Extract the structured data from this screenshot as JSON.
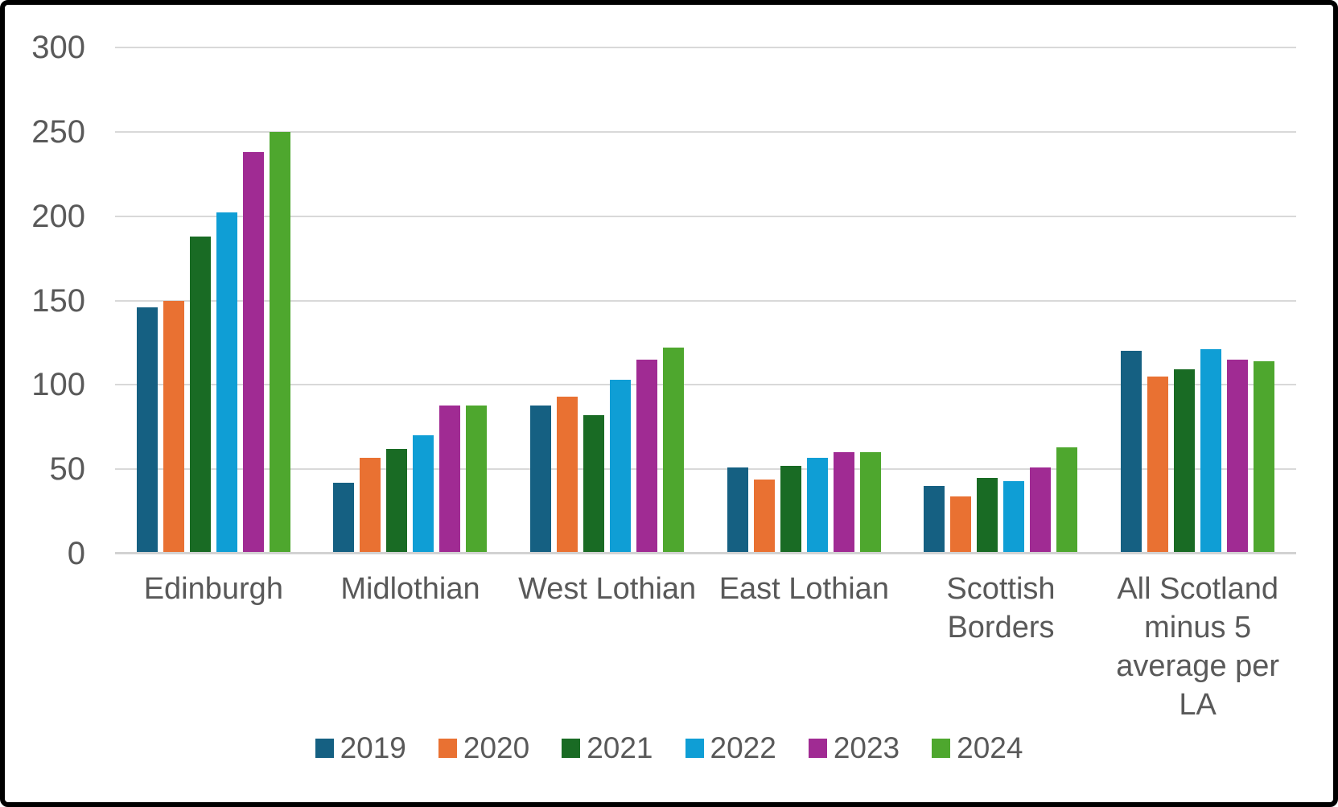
{
  "chart_data": {
    "type": "bar",
    "categories": [
      "Edinburgh",
      "Midlothian",
      "West Lothian",
      "East Lothian",
      "Scottish Borders",
      "All Scotland minus 5 average per LA"
    ],
    "category_label_lines": [
      [
        "Edinburgh"
      ],
      [
        "Midlothian"
      ],
      [
        "West Lothian"
      ],
      [
        "East Lothian"
      ],
      [
        "Scottish",
        "Borders"
      ],
      [
        "All Scotland",
        "minus 5",
        "average per LA"
      ]
    ],
    "series": [
      {
        "name": "2019",
        "color": "#156082",
        "values": [
          146,
          42,
          88,
          51,
          40,
          120
        ]
      },
      {
        "name": "2020",
        "color": "#E97132",
        "values": [
          150,
          57,
          93,
          44,
          34,
          105
        ]
      },
      {
        "name": "2021",
        "color": "#196B24",
        "values": [
          188,
          62,
          82,
          52,
          45,
          109
        ]
      },
      {
        "name": "2022",
        "color": "#0F9ED5",
        "values": [
          202,
          70,
          103,
          57,
          43,
          121
        ]
      },
      {
        "name": "2023",
        "color": "#A02B93",
        "values": [
          238,
          88,
          115,
          60,
          51,
          115
        ]
      },
      {
        "name": "2024",
        "color": "#4EA72E",
        "values": [
          250,
          88,
          122,
          60,
          63,
          114
        ]
      }
    ],
    "y_axis": {
      "min": 0,
      "max": 300,
      "step": 50,
      "tick_labels": [
        "0",
        "50",
        "100",
        "150",
        "200",
        "250",
        "300"
      ]
    },
    "legend": {
      "position": "bottom",
      "entries": [
        "2019",
        "2020",
        "2021",
        "2022",
        "2023",
        "2024"
      ]
    },
    "grid": true,
    "styles": {
      "text_color": "#595959",
      "gridline_color": "#D9D9D9",
      "axis_line_color": "#D2D2D2",
      "background": "#FFFFFF",
      "frame_border_color": "#000000"
    }
  }
}
